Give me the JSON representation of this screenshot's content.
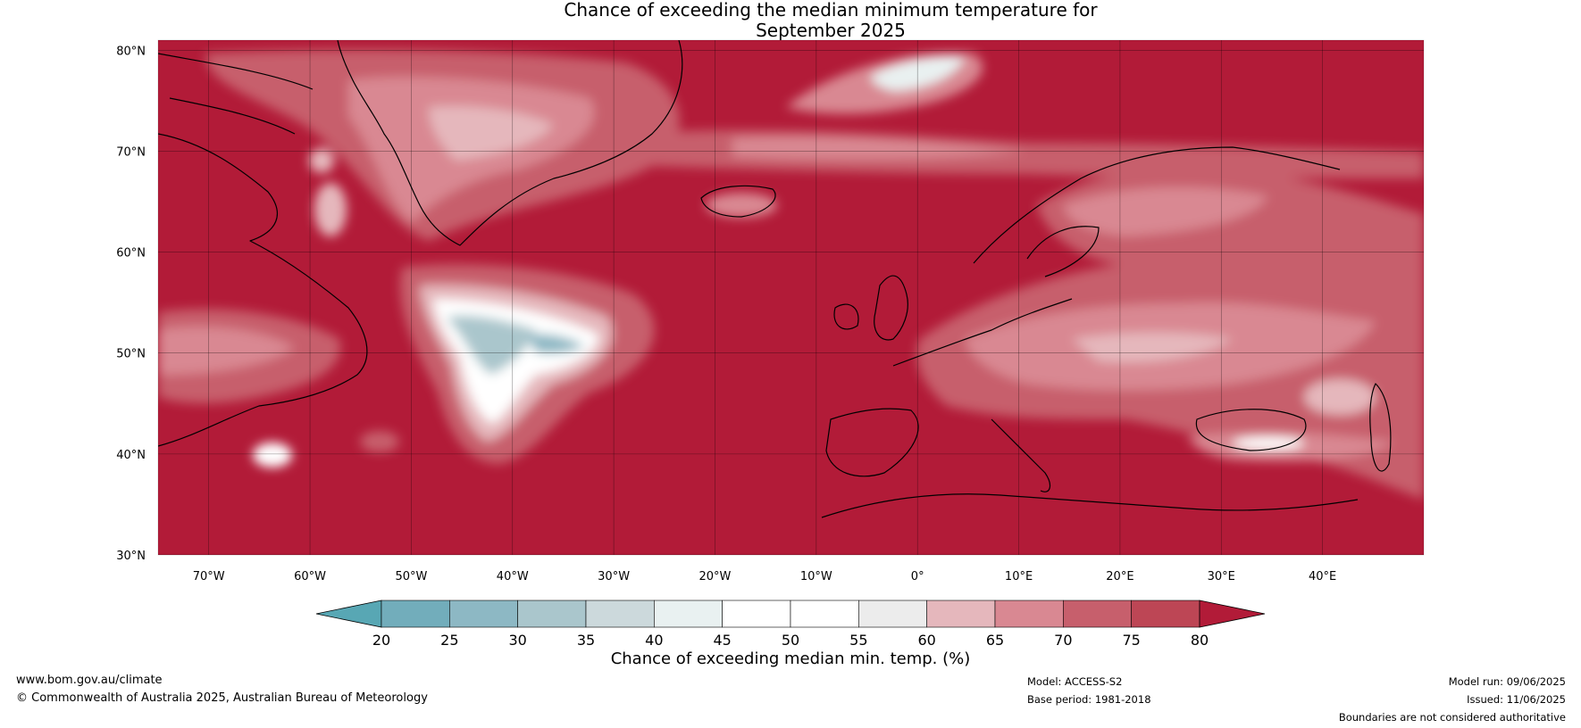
{
  "title_line1": "Chance of exceeding the median minimum temperature for",
  "title_line2": "September 2025",
  "map": {
    "lon_ticks": [
      "70°W",
      "60°W",
      "50°W",
      "40°W",
      "30°W",
      "20°W",
      "10°W",
      "0°",
      "10°E",
      "20°E",
      "30°E",
      "40°E"
    ],
    "lat_ticks": [
      "80°N",
      "70°N",
      "60°N",
      "50°N",
      "40°N",
      "30°N"
    ],
    "lon_range": [
      -75,
      50
    ],
    "lat_range": [
      30,
      81
    ],
    "dominant_fill": "#b21b38",
    "grid": true
  },
  "colorbar": {
    "ticks": [
      "20",
      "25",
      "30",
      "35",
      "40",
      "45",
      "50",
      "55",
      "60",
      "65",
      "70",
      "75",
      "80"
    ],
    "colors": [
      "#58a7b4",
      "#72adbb",
      "#8db8c4",
      "#aac6cc",
      "#ccd9dc",
      "#e9f1f1",
      "#ffffff",
      "#ffffff",
      "#ececec",
      "#e5b7bc",
      "#d98892",
      "#c75f6c",
      "#bd4655",
      "#b21b38"
    ],
    "label": "Chance of exceeding median min. temp. (%)"
  },
  "footer": {
    "website": "www.bom.gov.au/climate",
    "copyright": "© Commonwealth of Australia 2025, Australian Bureau of Meteorology",
    "model": "Model: ACCESS-S2",
    "base_period": "Base period: 1981-2018",
    "model_run": "Model run: 09/06/2025",
    "issued": "Issued: 11/06/2025",
    "disclaimer": "Boundaries are not considered authoritative"
  }
}
